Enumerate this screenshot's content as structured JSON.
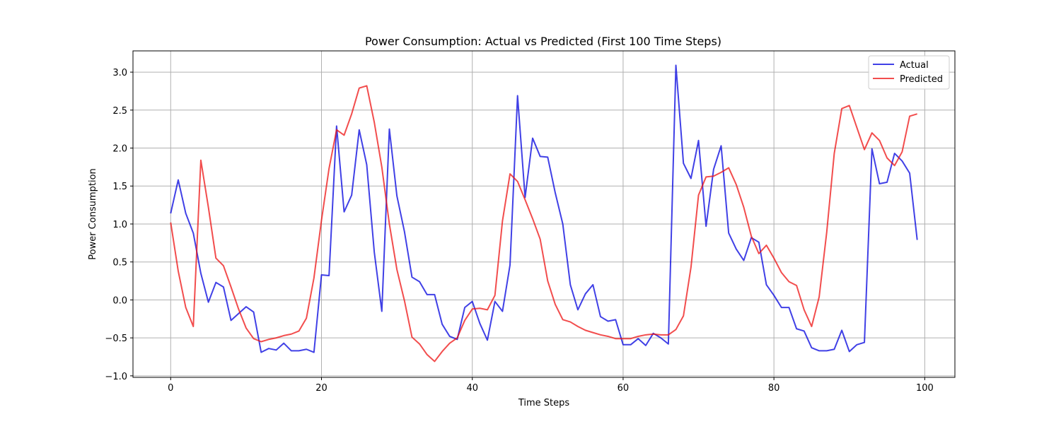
{
  "chart_data": {
    "type": "line",
    "title": "Power Consumption: Actual vs Predicted (First 100 Time Steps)",
    "xlabel": "Time Steps",
    "ylabel": "Power Consumption",
    "xlim": [
      -5,
      104
    ],
    "ylim": [
      -1.02,
      3.28
    ],
    "xticks": [
      0,
      20,
      40,
      60,
      80,
      100
    ],
    "yticks": [
      -1.0,
      -0.5,
      0.0,
      0.5,
      1.0,
      1.5,
      2.0,
      2.5,
      3.0
    ],
    "xtick_labels": [
      "0",
      "20",
      "40",
      "60",
      "80",
      "100"
    ],
    "ytick_labels": [
      "−1.0",
      "−0.5",
      "0.0",
      "0.5",
      "1.0",
      "1.5",
      "2.0",
      "2.5",
      "3.0"
    ],
    "grid": true,
    "legend_position": "top-right",
    "series": [
      {
        "name": "Actual",
        "color": "#0000dd",
        "values": [
          1.14,
          1.58,
          1.14,
          0.88,
          0.35,
          -0.03,
          0.23,
          0.17,
          -0.27,
          -0.18,
          -0.09,
          -0.16,
          -0.69,
          -0.64,
          -0.66,
          -0.57,
          -0.67,
          -0.67,
          -0.65,
          -0.69,
          0.33,
          0.32,
          2.29,
          1.16,
          1.38,
          2.24,
          1.78,
          0.63,
          -0.15,
          2.25,
          1.37,
          0.9,
          0.3,
          0.24,
          0.07,
          0.07,
          -0.32,
          -0.48,
          -0.52,
          -0.1,
          -0.02,
          -0.31,
          -0.53,
          -0.02,
          -0.15,
          0.46,
          2.69,
          1.35,
          2.13,
          1.89,
          1.88,
          1.41,
          1.0,
          0.2,
          -0.13,
          0.08,
          0.2,
          -0.22,
          -0.28,
          -0.26,
          -0.59,
          -0.59,
          -0.51,
          -0.6,
          -0.44,
          -0.5,
          -0.58,
          3.09,
          1.8,
          1.6,
          2.1,
          0.97,
          1.72,
          2.03,
          0.88,
          0.67,
          0.52,
          0.82,
          0.76,
          0.2,
          0.06,
          -0.1,
          -0.1,
          -0.38,
          -0.41,
          -0.63,
          -0.67,
          -0.67,
          -0.65,
          -0.4,
          -0.68,
          -0.59,
          -0.56,
          1.99,
          1.53,
          1.55,
          1.93,
          1.83,
          1.67,
          0.79
        ]
      },
      {
        "name": "Predicted",
        "color": "#ee1111",
        "values": [
          1.02,
          0.38,
          -0.1,
          -0.35,
          1.84,
          1.22,
          0.55,
          0.45,
          0.17,
          -0.12,
          -0.37,
          -0.51,
          -0.55,
          -0.52,
          -0.5,
          -0.47,
          -0.45,
          -0.41,
          -0.24,
          0.29,
          1.05,
          1.73,
          2.24,
          2.17,
          2.45,
          2.79,
          2.82,
          2.34,
          1.75,
          1.0,
          0.4,
          -0.01,
          -0.49,
          -0.58,
          -0.72,
          -0.81,
          -0.68,
          -0.57,
          -0.5,
          -0.27,
          -0.12,
          -0.11,
          -0.13,
          0.06,
          1.04,
          1.66,
          1.56,
          1.32,
          1.07,
          0.8,
          0.25,
          -0.06,
          -0.26,
          -0.29,
          -0.35,
          -0.4,
          -0.43,
          -0.46,
          -0.48,
          -0.51,
          -0.51,
          -0.51,
          -0.48,
          -0.46,
          -0.45,
          -0.46,
          -0.46,
          -0.39,
          -0.21,
          0.43,
          1.38,
          1.62,
          1.63,
          1.68,
          1.74,
          1.52,
          1.22,
          0.84,
          0.61,
          0.72,
          0.55,
          0.36,
          0.24,
          0.19,
          -0.13,
          -0.35,
          0.04,
          0.89,
          1.93,
          2.52,
          2.56,
          2.27,
          1.98,
          2.2,
          2.1,
          1.87,
          1.77,
          1.95,
          2.42,
          2.45
        ]
      }
    ]
  }
}
